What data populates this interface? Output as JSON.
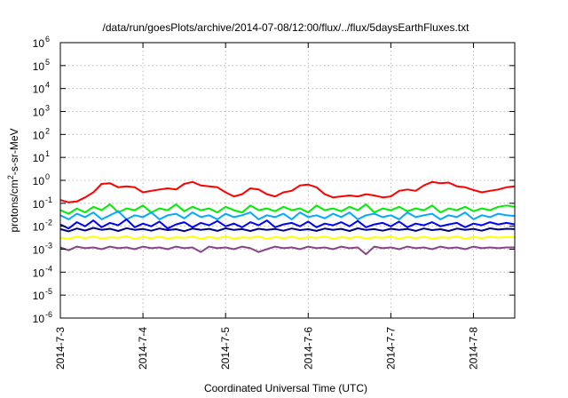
{
  "chart_data": {
    "type": "line",
    "title": "/data/run/goesPlots/archive/2014-07-08/12:00/flux/../flux/5daysEarthFluxes.txt",
    "xlabel": "Coordinated Universal Time (UTC)",
    "ylabel_parts": {
      "pre": "protons/cm",
      "sup": "2",
      "post": "-s-sr-MeV"
    },
    "y_scale": "log",
    "ylim": [
      1e-06,
      1000000.0
    ],
    "xlim_days": [
      0,
      5.5
    ],
    "grid": true,
    "legend": "none",
    "y_ticks": [
      {
        "base": "10",
        "exp": "-6",
        "value": -6
      },
      {
        "base": "10",
        "exp": "-5",
        "value": -5
      },
      {
        "base": "10",
        "exp": "-4",
        "value": -4
      },
      {
        "base": "10",
        "exp": "-3",
        "value": -3
      },
      {
        "base": "10",
        "exp": "-2",
        "value": -2
      },
      {
        "base": "10",
        "exp": "-1",
        "value": -1
      },
      {
        "base": "10",
        "exp": "0",
        "value": 0
      },
      {
        "base": "10",
        "exp": "1",
        "value": 1
      },
      {
        "base": "10",
        "exp": "2",
        "value": 2
      },
      {
        "base": "10",
        "exp": "3",
        "value": 3
      },
      {
        "base": "10",
        "exp": "4",
        "value": 4
      },
      {
        "base": "10",
        "exp": "5",
        "value": 5
      },
      {
        "base": "10",
        "exp": "6",
        "value": 6
      }
    ],
    "x_ticks": [
      {
        "label": "2014-7-3",
        "day": 0
      },
      {
        "label": "2014-7-4",
        "day": 1
      },
      {
        "label": "2014-7-5",
        "day": 2
      },
      {
        "label": "2014-7-6",
        "day": 3
      },
      {
        "label": "2014-7-7",
        "day": 4
      },
      {
        "label": "2014-7-8",
        "day": 5
      }
    ],
    "series": [
      {
        "color": "#ff0000",
        "x": [
          0,
          0.1,
          0.2,
          0.3,
          0.4,
          0.5,
          0.6,
          0.7,
          0.8,
          0.9,
          1.0,
          1.1,
          1.2,
          1.3,
          1.4,
          1.5,
          1.6,
          1.7,
          1.8,
          1.9,
          2.0,
          2.1,
          2.2,
          2.3,
          2.4,
          2.5,
          2.6,
          2.7,
          2.8,
          2.9,
          3.0,
          3.1,
          3.2,
          3.3,
          3.4,
          3.5,
          3.6,
          3.7,
          3.8,
          3.9,
          4.0,
          4.1,
          4.2,
          4.3,
          4.4,
          4.5,
          4.6,
          4.7,
          4.8,
          4.9,
          5.0,
          5.1,
          5.2,
          5.3,
          5.4,
          5.5
        ],
        "y": [
          0.14,
          0.11,
          0.12,
          0.18,
          0.3,
          0.7,
          0.75,
          0.5,
          0.55,
          0.5,
          0.3,
          0.35,
          0.4,
          0.45,
          0.4,
          0.7,
          0.85,
          0.6,
          0.55,
          0.5,
          0.3,
          0.2,
          0.25,
          0.45,
          0.4,
          0.25,
          0.2,
          0.3,
          0.35,
          0.6,
          0.65,
          0.5,
          0.25,
          0.18,
          0.2,
          0.22,
          0.2,
          0.25,
          0.22,
          0.18,
          0.2,
          0.35,
          0.4,
          0.35,
          0.6,
          0.85,
          0.75,
          0.8,
          0.55,
          0.5,
          0.38,
          0.3,
          0.35,
          0.4,
          0.5,
          0.55
        ]
      },
      {
        "color": "#00ee00",
        "x": [
          0,
          0.1,
          0.2,
          0.3,
          0.4,
          0.5,
          0.6,
          0.7,
          0.8,
          0.9,
          1.0,
          1.1,
          1.2,
          1.3,
          1.4,
          1.5,
          1.6,
          1.7,
          1.8,
          1.9,
          2.0,
          2.1,
          2.2,
          2.3,
          2.4,
          2.5,
          2.6,
          2.7,
          2.8,
          2.9,
          3.0,
          3.1,
          3.2,
          3.3,
          3.4,
          3.5,
          3.6,
          3.7,
          3.8,
          3.9,
          4.0,
          4.1,
          4.2,
          4.3,
          4.4,
          4.5,
          4.6,
          4.7,
          4.8,
          4.9,
          5.0,
          5.1,
          5.2,
          5.3,
          5.4,
          5.5
        ],
        "y": [
          0.05,
          0.035,
          0.06,
          0.04,
          0.07,
          0.05,
          0.09,
          0.04,
          0.06,
          0.05,
          0.08,
          0.04,
          0.06,
          0.05,
          0.09,
          0.045,
          0.07,
          0.05,
          0.06,
          0.04,
          0.07,
          0.05,
          0.04,
          0.08,
          0.05,
          0.06,
          0.045,
          0.07,
          0.05,
          0.06,
          0.04,
          0.08,
          0.05,
          0.06,
          0.045,
          0.07,
          0.05,
          0.09,
          0.04,
          0.06,
          0.05,
          0.07,
          0.045,
          0.06,
          0.05,
          0.08,
          0.04,
          0.06,
          0.05,
          0.07,
          0.045,
          0.06,
          0.05,
          0.07,
          0.08,
          0.07
        ]
      },
      {
        "color": "#00aaff",
        "x": [
          0,
          0.1,
          0.2,
          0.3,
          0.4,
          0.5,
          0.6,
          0.7,
          0.8,
          0.9,
          1.0,
          1.1,
          1.2,
          1.3,
          1.4,
          1.5,
          1.6,
          1.7,
          1.8,
          1.9,
          2.0,
          2.1,
          2.2,
          2.3,
          2.4,
          2.5,
          2.6,
          2.7,
          2.8,
          2.9,
          3.0,
          3.1,
          3.2,
          3.3,
          3.4,
          3.5,
          3.6,
          3.7,
          3.8,
          3.9,
          4.0,
          4.1,
          4.2,
          4.3,
          4.4,
          4.5,
          4.6,
          4.7,
          4.8,
          4.9,
          5.0,
          5.1,
          5.2,
          5.3,
          5.4,
          5.5
        ],
        "y": [
          0.03,
          0.02,
          0.035,
          0.025,
          0.04,
          0.02,
          0.03,
          0.045,
          0.02,
          0.03,
          0.025,
          0.04,
          0.02,
          0.03,
          0.035,
          0.022,
          0.04,
          0.025,
          0.03,
          0.02,
          0.035,
          0.025,
          0.03,
          0.04,
          0.02,
          0.03,
          0.025,
          0.035,
          0.02,
          0.04,
          0.025,
          0.03,
          0.022,
          0.035,
          0.025,
          0.04,
          0.02,
          0.03,
          0.035,
          0.025,
          0.03,
          0.02,
          0.04,
          0.025,
          0.03,
          0.035,
          0.02,
          0.03,
          0.025,
          0.04,
          0.02,
          0.03,
          0.025,
          0.035,
          0.03,
          0.028
        ]
      },
      {
        "color": "#0000ff",
        "x": [
          0,
          0.1,
          0.2,
          0.3,
          0.4,
          0.5,
          0.6,
          0.7,
          0.8,
          0.9,
          1.0,
          1.1,
          1.2,
          1.3,
          1.4,
          1.5,
          1.6,
          1.7,
          1.8,
          1.9,
          2.0,
          2.1,
          2.2,
          2.3,
          2.4,
          2.5,
          2.6,
          2.7,
          2.8,
          2.9,
          3.0,
          3.1,
          3.2,
          3.3,
          3.4,
          3.5,
          3.6,
          3.7,
          3.8,
          3.9,
          4.0,
          4.1,
          4.2,
          4.3,
          4.4,
          4.5,
          4.6,
          4.7,
          4.8,
          4.9,
          5.0,
          5.1,
          5.2,
          5.3,
          5.4,
          5.5
        ],
        "y": [
          0.012,
          0.008,
          0.015,
          0.01,
          0.018,
          0.009,
          0.014,
          0.011,
          0.02,
          0.009,
          0.013,
          0.01,
          0.016,
          0.008,
          0.012,
          0.015,
          0.009,
          0.014,
          0.011,
          0.017,
          0.01,
          0.013,
          0.009,
          0.015,
          0.011,
          0.018,
          0.009,
          0.012,
          0.014,
          0.01,
          0.016,
          0.009,
          0.013,
          0.011,
          0.015,
          0.01,
          0.017,
          0.009,
          0.012,
          0.014,
          0.01,
          0.016,
          0.009,
          0.013,
          0.011,
          0.015,
          0.01,
          0.012,
          0.014,
          0.009,
          0.013,
          0.011,
          0.015,
          0.012,
          0.014,
          0.012
        ]
      },
      {
        "color": "#00008b",
        "x": [
          0,
          0.1,
          0.2,
          0.3,
          0.4,
          0.5,
          0.6,
          0.7,
          0.8,
          0.9,
          1.0,
          1.1,
          1.2,
          1.3,
          1.4,
          1.5,
          1.6,
          1.7,
          1.8,
          1.9,
          2.0,
          2.1,
          2.2,
          2.3,
          2.4,
          2.5,
          2.6,
          2.7,
          2.8,
          2.9,
          3.0,
          3.1,
          3.2,
          3.3,
          3.4,
          3.5,
          3.6,
          3.7,
          3.8,
          3.9,
          4.0,
          4.1,
          4.2,
          4.3,
          4.4,
          4.5,
          4.6,
          4.7,
          4.8,
          4.9,
          5.0,
          5.1,
          5.2,
          5.3,
          5.4,
          5.5
        ],
        "y": [
          0.0075,
          0.006,
          0.008,
          0.0065,
          0.0085,
          0.007,
          0.0078,
          0.0062,
          0.0082,
          0.007,
          0.0076,
          0.0064,
          0.008,
          0.0068,
          0.0074,
          0.0061,
          0.0079,
          0.007,
          0.0077,
          0.0063,
          0.0081,
          0.0069,
          0.0075,
          0.0062,
          0.0078,
          0.007,
          0.0076,
          0.0064,
          0.008,
          0.0068,
          0.0074,
          0.0063,
          0.0079,
          0.007,
          0.0077,
          0.0062,
          0.0081,
          0.0069,
          0.0075,
          0.0064,
          0.0078,
          0.007,
          0.0076,
          0.0063,
          0.008,
          0.0068,
          0.0074,
          0.0062,
          0.0079,
          0.007,
          0.0077,
          0.0064,
          0.0081,
          0.0072,
          0.0078,
          0.0075
        ]
      },
      {
        "color": "#ffff00",
        "x": [
          0,
          0.1,
          0.2,
          0.3,
          0.4,
          0.5,
          0.6,
          0.7,
          0.8,
          0.9,
          1.0,
          1.1,
          1.2,
          1.3,
          1.4,
          1.5,
          1.6,
          1.7,
          1.8,
          1.9,
          2.0,
          2.1,
          2.2,
          2.3,
          2.4,
          2.5,
          2.6,
          2.7,
          2.8,
          2.9,
          3.0,
          3.1,
          3.2,
          3.3,
          3.4,
          3.5,
          3.6,
          3.7,
          3.8,
          3.9,
          4.0,
          4.1,
          4.2,
          4.3,
          4.4,
          4.5,
          4.6,
          4.7,
          4.8,
          4.9,
          5.0,
          5.1,
          5.2,
          5.3,
          5.4,
          5.5
        ],
        "y": [
          0.0032,
          0.0028,
          0.0035,
          0.003,
          0.0036,
          0.0029,
          0.0033,
          0.0031,
          0.0037,
          0.0028,
          0.0034,
          0.003,
          0.0035,
          0.0029,
          0.0033,
          0.0031,
          0.0036,
          0.0028,
          0.0034,
          0.003,
          0.0035,
          0.0029,
          0.0033,
          0.0031,
          0.0036,
          0.0028,
          0.0034,
          0.003,
          0.0035,
          0.0029,
          0.0033,
          0.0031,
          0.0036,
          0.0028,
          0.0034,
          0.003,
          0.0035,
          0.0029,
          0.0033,
          0.0031,
          0.0036,
          0.0028,
          0.0034,
          0.003,
          0.0035,
          0.0029,
          0.0033,
          0.0031,
          0.0036,
          0.0028,
          0.0034,
          0.003,
          0.0035,
          0.0032,
          0.0034,
          0.0033
        ]
      },
      {
        "color": "#884488",
        "x": [
          0,
          0.1,
          0.2,
          0.3,
          0.4,
          0.5,
          0.6,
          0.7,
          0.8,
          0.9,
          1.0,
          1.1,
          1.2,
          1.3,
          1.4,
          1.5,
          1.6,
          1.7,
          1.8,
          1.9,
          2.0,
          2.1,
          2.2,
          2.3,
          2.4,
          2.5,
          2.6,
          2.7,
          2.8,
          2.9,
          3.0,
          3.1,
          3.2,
          3.3,
          3.4,
          3.5,
          3.6,
          3.7,
          3.8,
          3.9,
          4.0,
          4.1,
          4.2,
          4.3,
          4.4,
          4.5,
          4.6,
          4.7,
          4.8,
          4.9,
          5.0,
          5.1,
          5.2,
          5.3,
          5.4,
          5.5
        ],
        "y": [
          0.0012,
          0.0009,
          0.0013,
          0.0011,
          0.0012,
          0.001,
          0.0013,
          0.0011,
          0.0012,
          0.001,
          0.0013,
          0.0011,
          0.0012,
          0.001,
          0.0013,
          0.0011,
          0.0012,
          0.00075,
          0.0013,
          0.0011,
          0.0012,
          0.001,
          0.0013,
          0.0011,
          0.00075,
          0.001,
          0.0013,
          0.0011,
          0.0012,
          0.001,
          0.0013,
          0.0011,
          0.0012,
          0.001,
          0.0013,
          0.0011,
          0.0012,
          0.0006,
          0.0013,
          0.0011,
          0.0012,
          0.001,
          0.0013,
          0.0011,
          0.0012,
          0.001,
          0.0013,
          0.0011,
          0.0012,
          0.001,
          0.0013,
          0.0011,
          0.0012,
          0.0011,
          0.0012,
          0.0012
        ]
      }
    ]
  }
}
